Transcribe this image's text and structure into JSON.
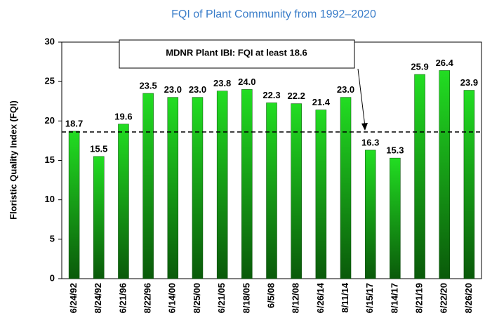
{
  "chart_data": {
    "type": "bar",
    "title": "FQI of Plant Community from 1992–2020",
    "y_label": "Floristic Quality Index (FQI)",
    "annotation": "MDNR Plant IBI:  FQI at least 18.6",
    "reference_line": 18.6,
    "categories": [
      "6/24/92",
      "8/24/92",
      "6/21/96",
      "8/22/96",
      "6/14/00",
      "8/25/00",
      "6/21/05",
      "8/18/05",
      "6/5/08",
      "8/12/08",
      "6/26/14",
      "8/11/14",
      "6/15/17",
      "8/14/17",
      "8/21/19",
      "6/22/20",
      "8/26/20"
    ],
    "values": [
      18.7,
      15.5,
      19.6,
      23.5,
      23.0,
      23.0,
      23.8,
      24.0,
      22.3,
      22.2,
      21.4,
      23.0,
      16.3,
      15.3,
      25.9,
      26.4,
      23.9
    ],
    "value_labels": [
      "18.7",
      "15.5",
      "19.6",
      "23.5",
      "23.0",
      "23.0",
      "23.8",
      "24.0",
      "22.3",
      "22.2",
      "21.4",
      "23.0",
      "16.3",
      "15.3",
      "25.9",
      "26.4",
      "23.9"
    ],
    "color": "#22dd22",
    "ylim": [
      0,
      30
    ],
    "yticks": [
      0,
      5,
      10,
      15,
      20,
      25,
      30
    ],
    "grid": false
  }
}
